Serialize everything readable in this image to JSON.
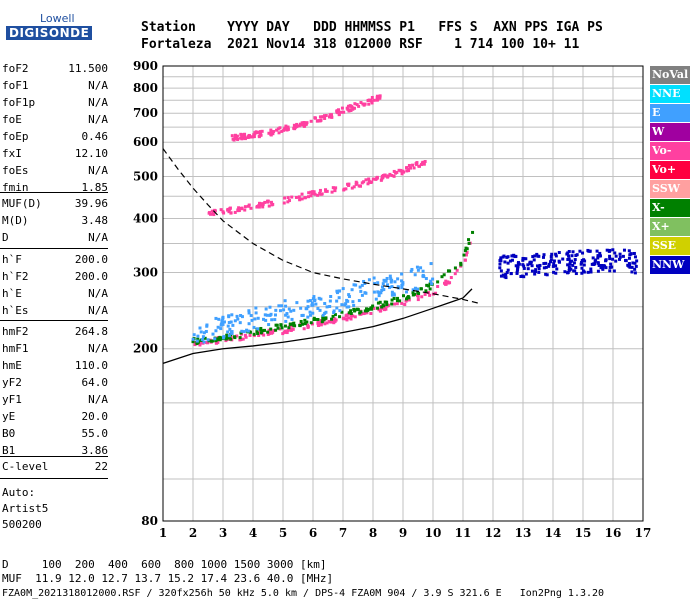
{
  "logo": {
    "line1": "Lowell",
    "line2": "DIGISONDE"
  },
  "header": {
    "line1": "Station    YYYY DAY   DDD HHMMSS P1   FFS S  AXN PPS IGA PS",
    "line2": "Fortaleza  2021 Nov14 318 012000 RSF    1 714 100 10+ 11"
  },
  "params_a": [
    {
      "k": "foF2",
      "v": "11.500"
    },
    {
      "k": "foF1",
      "v": "N/A"
    },
    {
      "k": "foF1p",
      "v": "N/A"
    },
    {
      "k": "foE",
      "v": "N/A"
    },
    {
      "k": "foEp",
      "v": "0.46"
    },
    {
      "k": "fxI",
      "v": "12.10"
    },
    {
      "k": "foEs",
      "v": "N/A"
    },
    {
      "k": "fmin",
      "v": "1.85"
    }
  ],
  "params_b": [
    {
      "k": "MUF(D)",
      "v": "39.96"
    },
    {
      "k": "M(D)",
      "v": "3.48"
    },
    {
      "k": "D",
      "v": "N/A"
    }
  ],
  "params_c": [
    {
      "k": "h`F",
      "v": "200.0"
    },
    {
      "k": "h`F2",
      "v": "200.0"
    },
    {
      "k": "h`E",
      "v": "N/A"
    },
    {
      "k": "h`Es",
      "v": "N/A"
    }
  ],
  "params_d": [
    {
      "k": "hmF2",
      "v": "264.8"
    },
    {
      "k": "hmF1",
      "v": "N/A"
    },
    {
      "k": "hmE",
      "v": "110.0"
    },
    {
      "k": "yF2",
      "v": "64.0"
    },
    {
      "k": "yF1",
      "v": "N/A"
    },
    {
      "k": "yE",
      "v": "20.0"
    },
    {
      "k": "B0",
      "v": "55.0"
    },
    {
      "k": "B1",
      "v": "3.86"
    }
  ],
  "params_e": [
    {
      "k": "C-level",
      "v": "22"
    }
  ],
  "notes": {
    "auto": "Auto:",
    "artist": "Artist5",
    "ver": "500200"
  },
  "legend": [
    {
      "label": "NoVal",
      "color": "#808080"
    },
    {
      "label": "NNE",
      "color": "#00e0ff"
    },
    {
      "label": "E",
      "color": "#40a0ff"
    },
    {
      "label": "W",
      "color": "#a000a0"
    },
    {
      "label": "Vo-",
      "color": "#ff40a0"
    },
    {
      "label": "Vo+",
      "color": "#ff0040"
    },
    {
      "label": "SSW",
      "color": "#ffa0a0"
    },
    {
      "label": "X-",
      "color": "#008000"
    },
    {
      "label": "X+",
      "color": "#80c060"
    },
    {
      "label": "SSE",
      "color": "#d0d000"
    },
    {
      "label": "NNW",
      "color": "#0000c0"
    }
  ],
  "bottom": {
    "line1": "D     100  200  400  600  800 1000 1500 3000 [km]",
    "line2": "MUF  11.9 12.0 12.7 13.7 15.2 17.4 23.6 40.0 [MHz]",
    "line3": "FZA0M_2021318012000.RSF / 320fx256h 50 kHz 5.0 km / DPS-4 FZA0M 904 / 3.9 S 321.6 E   Ion2Png 1.3.20"
  },
  "chart_data": {
    "type": "scatter",
    "xlim": [
      1,
      17
    ],
    "ylim": [
      80,
      900
    ],
    "y_scale": "log",
    "x_ticks": [
      1,
      2,
      3,
      4,
      5,
      6,
      7,
      8,
      9,
      10,
      11,
      12,
      13,
      14,
      15,
      16,
      17
    ],
    "y_ticks": [
      80,
      200,
      300,
      400,
      500,
      600,
      700,
      800,
      900
    ],
    "grid": true,
    "traces": [
      {
        "name": "O-trace F2",
        "color": "#ff40a0",
        "x": [
          2,
          3,
          4,
          5,
          6,
          7,
          8,
          9,
          10,
          10.5,
          11,
          11.3,
          11.5
        ],
        "y": [
          205,
          210,
          215,
          220,
          228,
          235,
          245,
          255,
          270,
          285,
          310,
          360,
          420
        ]
      },
      {
        "name": "X-trace F2",
        "color": "#008000",
        "x": [
          2,
          3,
          4,
          5,
          6,
          7,
          8,
          9,
          10,
          11,
          11.4
        ],
        "y": [
          208,
          212,
          218,
          225,
          232,
          240,
          250,
          262,
          280,
          320,
          390
        ]
      },
      {
        "name": "2nd hop",
        "color": "#ff40a0",
        "x": [
          2.5,
          4,
          5,
          6,
          7,
          8,
          9,
          9.8
        ],
        "y": [
          410,
          425,
          440,
          455,
          470,
          490,
          515,
          545
        ]
      },
      {
        "name": "3rd hop",
        "color": "#ff40a0",
        "x": [
          3.3,
          4.5,
          5.5,
          6.5,
          7.5,
          8.3
        ],
        "y": [
          615,
          630,
          655,
          690,
          730,
          765
        ]
      },
      {
        "name": "E-direction spread",
        "color": "#40a0ff",
        "x": [
          2,
          3,
          4,
          5,
          6,
          7,
          8,
          9,
          10
        ],
        "y": [
          215,
          225,
          235,
          245,
          250,
          260,
          275,
          285,
          300
        ]
      },
      {
        "name": "NNW spread",
        "color": "#0000c0",
        "x": [
          12.2,
          13,
          14,
          15,
          16,
          16.8
        ],
        "y": [
          310,
          312,
          315,
          318,
          320,
          318
        ]
      }
    ],
    "profile_solid": {
      "x": [
        1,
        2,
        3,
        4,
        5,
        6,
        7,
        8,
        9,
        10,
        10.5,
        11,
        11.3
      ],
      "y": [
        185,
        195,
        200,
        203,
        207,
        212,
        218,
        225,
        235,
        248,
        255,
        262,
        275
      ]
    },
    "profile_dashed": {
      "x": [
        1,
        1.5,
        2,
        2.5,
        3,
        4,
        5,
        6,
        7,
        8,
        9,
        10,
        11,
        11.5
      ],
      "y": [
        580,
        520,
        470,
        430,
        395,
        350,
        320,
        300,
        290,
        282,
        275,
        268,
        260,
        255
      ]
    }
  }
}
